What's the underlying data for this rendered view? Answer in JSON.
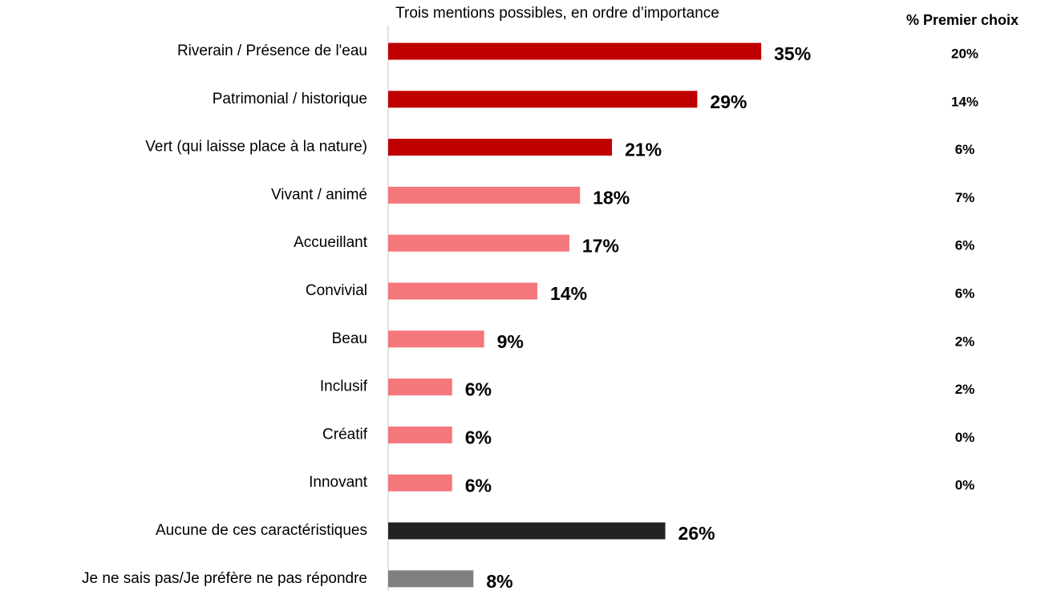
{
  "chart_data": {
    "type": "bar",
    "orientation": "horizontal",
    "subtitle": "Trois mentions possibles, en ordre d’importance",
    "categories": [
      "Riverain / Présence de l'eau",
      "Patrimonial / historique",
      "Vert (qui laisse place à la nature)",
      "Vivant / animé",
      "Accueillant",
      "Convivial",
      "Beau",
      "Inclusif",
      "Créatif",
      "Innovant",
      "Aucune de ces caractéristiques",
      "Je ne sais pas/Je préfère ne pas répondre"
    ],
    "values": [
      35,
      29,
      21,
      18,
      17,
      14,
      9,
      6,
      6,
      6,
      26,
      8
    ],
    "value_labels": [
      "35%",
      "29%",
      "21%",
      "18%",
      "17%",
      "14%",
      "9%",
      "6%",
      "6%",
      "6%",
      "26%",
      "8%"
    ],
    "colors": [
      "#c00000",
      "#c00000",
      "#c00000",
      "#f4777b",
      "#f4777b",
      "#f4777b",
      "#f4777b",
      "#f4777b",
      "#f4777b",
      "#f4777b",
      "#222222",
      "#7f7f7f"
    ],
    "first_choice": {
      "title": "% Premier choix",
      "values": [
        20,
        14,
        6,
        7,
        6,
        6,
        2,
        2,
        0,
        0
      ],
      "value_labels": [
        "20%",
        "14%",
        "6%",
        "7%",
        "6%",
        "6%",
        "2%",
        "2%",
        "0%",
        "0%"
      ]
    }
  }
}
